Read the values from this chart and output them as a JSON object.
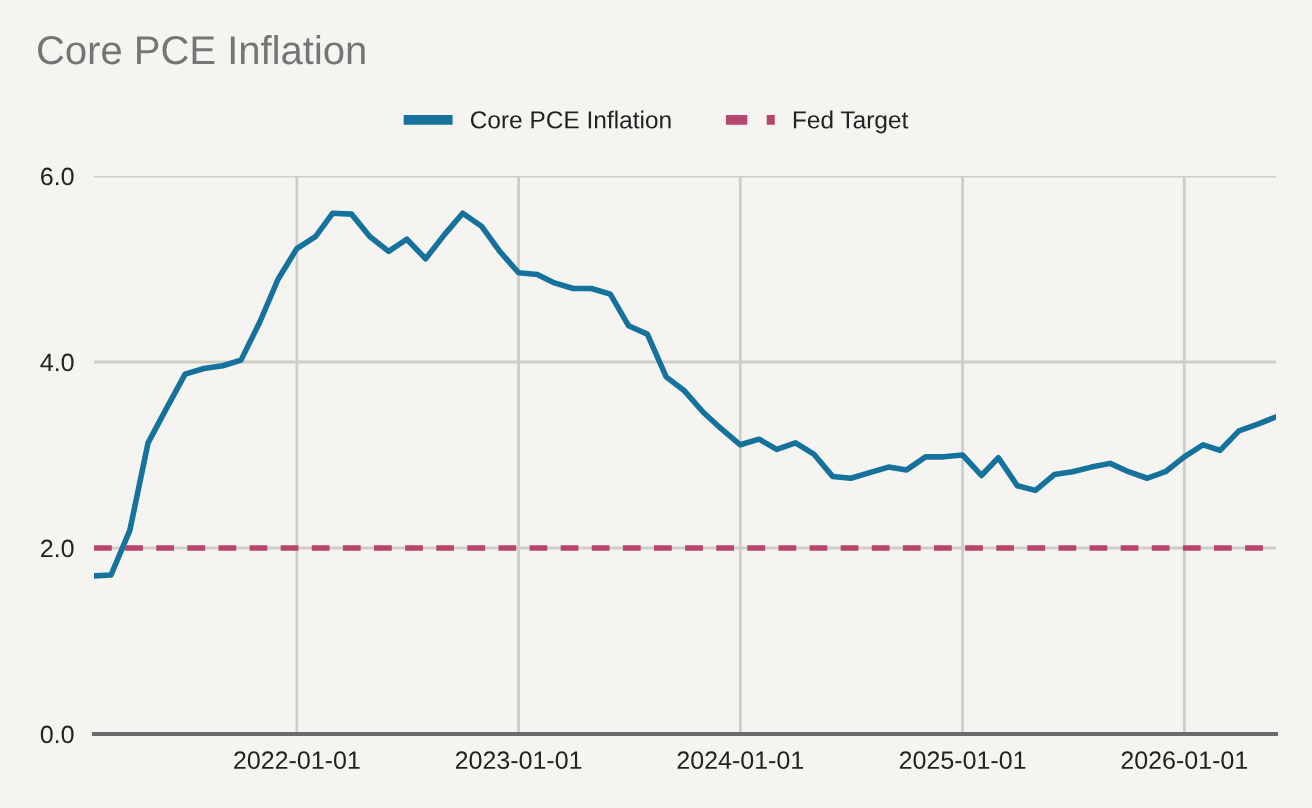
{
  "chart_data": {
    "type": "line",
    "title": "Core PCE Inflation",
    "x": [
      "2021-02",
      "2021-03",
      "2021-04",
      "2021-05",
      "2021-06",
      "2021-07",
      "2021-08",
      "2021-09",
      "2021-10",
      "2021-11",
      "2021-12",
      "2022-01",
      "2022-02",
      "2022-03",
      "2022-04",
      "2022-05",
      "2022-06",
      "2022-07",
      "2022-08",
      "2022-09",
      "2022-10",
      "2022-11",
      "2022-12",
      "2023-01",
      "2023-02",
      "2023-03",
      "2023-04",
      "2023-05",
      "2023-06",
      "2023-07",
      "2023-08",
      "2023-09",
      "2023-10",
      "2023-11",
      "2023-12",
      "2024-01",
      "2024-02",
      "2024-03",
      "2024-04",
      "2024-05",
      "2024-06",
      "2024-07",
      "2024-08",
      "2024-09",
      "2024-10",
      "2024-11",
      "2024-12",
      "2025-01",
      "2025-02",
      "2025-03",
      "2025-04",
      "2025-05",
      "2025-06",
      "2025-07",
      "2025-08",
      "2025-09",
      "2025-10",
      "2025-11",
      "2025-12",
      "2026-01",
      "2026-02",
      "2026-03",
      "2026-04",
      "2026-05",
      "2026-06"
    ],
    "series": [
      {
        "name": "Core PCE Inflation",
        "color": "#15729c",
        "values": [
          1.7,
          1.71,
          2.19,
          3.13,
          3.51,
          3.87,
          3.93,
          3.96,
          4.02,
          4.43,
          4.89,
          5.22,
          5.35,
          5.6,
          5.59,
          5.35,
          5.19,
          5.32,
          5.11,
          5.37,
          5.6,
          5.46,
          5.19,
          4.96,
          4.94,
          4.85,
          4.79,
          4.79,
          4.73,
          4.39,
          4.3,
          3.84,
          3.69,
          3.46,
          3.28,
          3.11,
          3.17,
          3.06,
          3.13,
          3.01,
          2.77,
          2.75,
          2.81,
          2.87,
          2.84,
          2.98,
          2.98,
          3.0,
          2.78,
          2.97,
          2.67,
          2.62,
          2.79,
          2.82,
          2.87,
          2.91,
          2.82,
          2.75,
          2.82,
          2.98,
          3.11,
          3.05,
          3.26,
          3.33,
          3.41
        ]
      }
    ],
    "ref_lines": [
      {
        "axis": "y",
        "value": 2,
        "label": "Fed Target",
        "color": "#b8456c",
        "line_style": "dashed"
      }
    ],
    "xlim": [
      "2021-02-01",
      "2026-06-01"
    ],
    "xticks": [
      "2022-01-01",
      "2023-01-01",
      "2024-01-01",
      "2025-01-01",
      "2026-01-01"
    ],
    "ylim": [
      0,
      6
    ],
    "yticks": [
      {
        "value": 0,
        "label": "0.0"
      },
      {
        "value": 2,
        "label": "2.0"
      },
      {
        "value": 4,
        "label": "4.0"
      },
      {
        "value": 6,
        "label": "6.0"
      }
    ],
    "grid": true,
    "legend": "top"
  }
}
